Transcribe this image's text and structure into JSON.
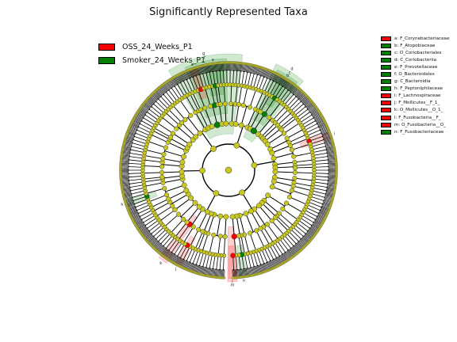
{
  "title": "Significantly Represented Taxa",
  "groups": [
    {
      "name": "OSS_24_Weeks_P1",
      "color": "#ff0000"
    },
    {
      "name": "Smoker_24_Weeks_P1",
      "color": "#008000"
    }
  ],
  "taxa": [
    {
      "letter": "a",
      "label": "a: F_Corynebacteriaceae",
      "group": 0
    },
    {
      "letter": "b",
      "label": "b: F_Atopobiaceae",
      "group": 1
    },
    {
      "letter": "c",
      "label": "c: O_Coriobacteriales",
      "group": 1
    },
    {
      "letter": "d",
      "label": "d: C_Coriobacteriia",
      "group": 1
    },
    {
      "letter": "e",
      "label": "e: F_Prevotellaceae",
      "group": 1
    },
    {
      "letter": "f",
      "label": "f: O_Bacteroidales",
      "group": 1
    },
    {
      "letter": "g",
      "label": "g: C_Bacteroidia",
      "group": 1
    },
    {
      "letter": "h",
      "label": "h: F_Peptoniphilaceae",
      "group": 1
    },
    {
      "letter": "i",
      "label": "i: F_Lachnospiraceae",
      "group": 0
    },
    {
      "letter": "j",
      "label": "j: F_Mollicutes__F_1_",
      "group": 0
    },
    {
      "letter": "k",
      "label": "k: O_Mollicutes__O_1_",
      "group": 0
    },
    {
      "letter": "l",
      "label": "l: F_Fusobacteria__F_",
      "group": 0
    },
    {
      "letter": "m",
      "label": "m: O_Fusobacteria__O_",
      "group": 0
    },
    {
      "letter": "n",
      "label": "n: F_Fusobacteriaceae",
      "group": 1
    }
  ],
  "colors": {
    "neutral_node": "#c8c81e",
    "edge": "#000000",
    "red": "#ff0000",
    "green": "#008000"
  }
}
